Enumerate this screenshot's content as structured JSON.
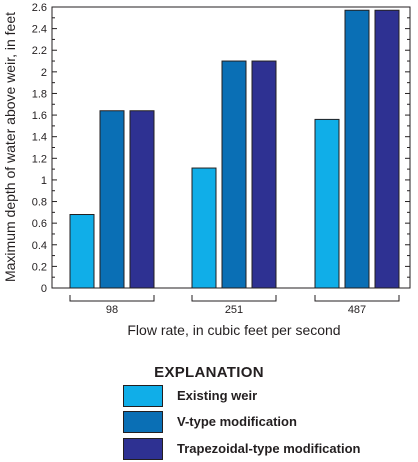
{
  "chart_data": {
    "type": "bar",
    "categories": [
      "98",
      "251",
      "487"
    ],
    "series": [
      {
        "name": "Existing weir",
        "values": [
          0.68,
          1.11,
          1.56
        ],
        "color": "#10aee8"
      },
      {
        "name": "V-type modification",
        "values": [
          1.64,
          2.1,
          2.57
        ],
        "color": "#0a6fb5"
      },
      {
        "name": "Trapezoidal-type modification",
        "values": [
          1.64,
          2.1,
          2.57
        ],
        "color": "#2e3192"
      }
    ],
    "title": "",
    "xlabel": "Flow rate, in cubic feet per second",
    "ylabel": "Maximum depth of water above weir, in feet",
    "ylim": [
      0,
      2.6
    ],
    "yticks": [
      "0",
      "0.2",
      "0.4",
      "0.6",
      "0.8",
      "1",
      "1.2",
      "1.4",
      "1.6",
      "1.8",
      "2",
      "2.2",
      "2.4",
      "2.6"
    ],
    "grid": false,
    "legend_title": "EXPLANATION",
    "legend_placement": "bottom"
  }
}
